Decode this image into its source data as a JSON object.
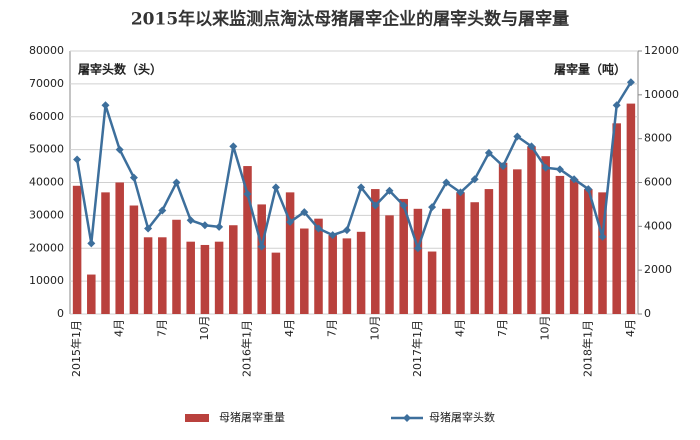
{
  "chart_data": {
    "type": "bar-line",
    "title": "2015年以来监测点淘汰母猪屠宰企业的屠宰头数与屠宰量",
    "y_label": "屠宰头数（头）",
    "y2_label": "屠宰量（吨）",
    "categories": [
      "2015年1月",
      null,
      null,
      "4月",
      null,
      null,
      "7月",
      null,
      null,
      "10月",
      null,
      null,
      "2016年1月",
      null,
      null,
      "4月",
      null,
      null,
      "7月",
      null,
      null,
      "10月",
      null,
      null,
      "2017年1月",
      null,
      null,
      "4月",
      null,
      null,
      "7月",
      null,
      null,
      "10月",
      null,
      null,
      "2018年1月",
      null,
      null,
      "4月"
    ],
    "series": [
      {
        "name": "母猪屠宰重量",
        "type": "bar",
        "axis": "y2",
        "color": "#b9413d",
        "values": [
          5850,
          1800,
          5550,
          6000,
          4950,
          3500,
          3500,
          4300,
          3300,
          3150,
          3300,
          4050,
          6750,
          5000,
          2800,
          5550,
          3900,
          4350,
          3600,
          3450,
          3750,
          5700,
          4500,
          5250,
          4800,
          2850,
          4800,
          5550,
          5100,
          5700,
          6900,
          6600,
          7650,
          7200,
          6300,
          6150,
          5700,
          5550,
          8700,
          9600
        ]
      },
      {
        "name": "母猪屠宰头数",
        "type": "line",
        "axis": "y",
        "color": "#3d6f9c",
        "values": [
          47000,
          21500,
          63500,
          50000,
          41500,
          26000,
          31500,
          40000,
          28500,
          27000,
          26500,
          51000,
          36500,
          20500,
          38500,
          28000,
          31000,
          26000,
          24000,
          25500,
          38500,
          33000,
          37500,
          33000,
          20000,
          32500,
          40000,
          37000,
          41000,
          49000,
          45000,
          54000,
          51000,
          44500,
          44000,
          41000,
          38000,
          23500,
          63500,
          70500
        ]
      }
    ],
    "ylim": [
      0,
      80000
    ],
    "yticks": [
      0,
      10000,
      20000,
      30000,
      40000,
      50000,
      60000,
      70000,
      80000
    ],
    "y2lim": [
      0,
      12000
    ],
    "y2ticks": [
      0,
      2000,
      4000,
      6000,
      8000,
      10000,
      12000
    ],
    "grid": true
  }
}
